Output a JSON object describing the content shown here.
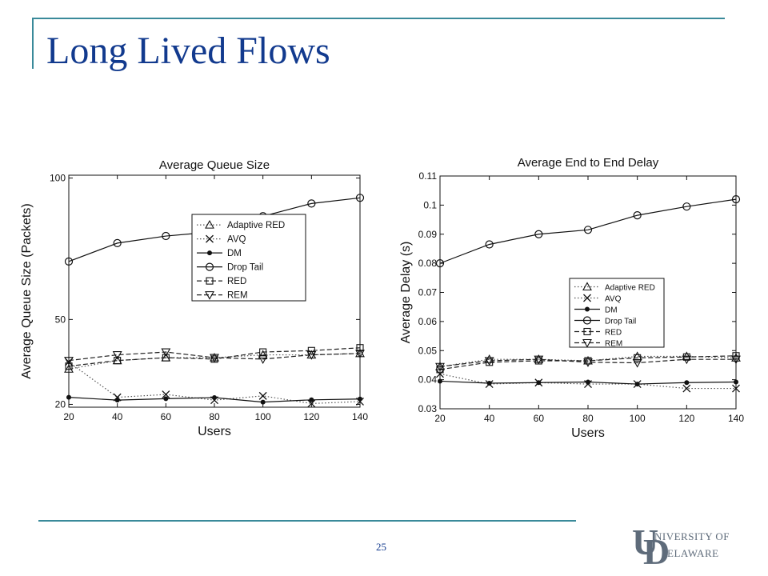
{
  "slide": {
    "title": "Long Lived Flows",
    "page_number": "25",
    "logo": {
      "line1": "NIVERSITY OF",
      "line2": "ELAWARE",
      "letter_u": "U",
      "letter_d": "D"
    },
    "colors": {
      "title": "#123a8e",
      "rule": "#3a8a9a",
      "logo": "#5e6b7a"
    }
  },
  "chart_data": [
    {
      "type": "line",
      "title": "Average Queue Size",
      "xlabel": "Users",
      "ylabel": "Average Queue Size (Packets)",
      "x": [
        20,
        40,
        60,
        80,
        100,
        120,
        140
      ],
      "xticks": [
        "20",
        "40",
        "60",
        "80",
        "100",
        "120",
        "140"
      ],
      "yticks": [
        {
          "value": 20,
          "label": "20"
        },
        {
          "value": 50,
          "label": "50"
        },
        {
          "value": 100,
          "label": "100"
        }
      ],
      "ylim": [
        19,
        101
      ],
      "legend_position": "center-right",
      "series": [
        {
          "name": "Adaptive RED",
          "marker": "triangle-up",
          "dash": "dotted",
          "values": [
            32.5,
            35.5,
            36.5,
            36.5,
            37.5,
            37.5,
            38
          ]
        },
        {
          "name": "AVQ",
          "marker": "x",
          "dash": "dotted",
          "values": [
            35,
            22.5,
            23.5,
            21.5,
            23,
            20.3,
            21
          ]
        },
        {
          "name": "DM",
          "marker": "dot",
          "dash": "solid",
          "values": [
            22.5,
            21.5,
            22,
            22.4,
            20.8,
            21.6,
            21.9
          ]
        },
        {
          "name": "Drop Tail",
          "marker": "circle",
          "dash": "solid",
          "values": [
            70.5,
            77,
            79.5,
            81,
            86.5,
            91,
            93
          ]
        },
        {
          "name": "RED",
          "marker": "square",
          "dash": "dashed",
          "values": [
            33.5,
            35.5,
            36.5,
            36,
            38.5,
            39,
            40
          ]
        },
        {
          "name": "REM",
          "marker": "triangle-down",
          "dash": "dashed",
          "values": [
            35.5,
            37.5,
            38.5,
            36.5,
            36,
            37.5,
            38
          ]
        }
      ]
    },
    {
      "type": "line",
      "title": "Average End to End Delay",
      "xlabel": "Users",
      "ylabel": "Average Delay (s)",
      "x": [
        20,
        40,
        60,
        80,
        100,
        120,
        140
      ],
      "xticks": [
        "20",
        "40",
        "60",
        "80",
        "100",
        "120",
        "140"
      ],
      "yticks": [
        {
          "value": 0.03,
          "label": "0.03"
        },
        {
          "value": 0.04,
          "label": "0.04"
        },
        {
          "value": 0.05,
          "label": "0.05"
        },
        {
          "value": 0.06,
          "label": "0.06"
        },
        {
          "value": 0.07,
          "label": "0.07"
        },
        {
          "value": 0.08,
          "label": "0.08"
        },
        {
          "value": 0.09,
          "label": "0.09"
        },
        {
          "value": 0.1,
          "label": "0.1"
        },
        {
          "value": 0.11,
          "label": "0.11"
        }
      ],
      "ylim": [
        0.03,
        0.11
      ],
      "legend_position": "center-right",
      "series": [
        {
          "name": "Adaptive RED",
          "marker": "triangle-up",
          "dash": "dotted",
          "values": [
            0.0445,
            0.047,
            0.047,
            0.0465,
            0.048,
            0.048,
            0.0475
          ]
        },
        {
          "name": "AVQ",
          "marker": "x",
          "dash": "dotted",
          "values": [
            0.042,
            0.0385,
            0.039,
            0.0385,
            0.0385,
            0.037,
            0.037
          ]
        },
        {
          "name": "DM",
          "marker": "dot",
          "dash": "solid",
          "values": [
            0.0395,
            0.0388,
            0.039,
            0.0392,
            0.0385,
            0.039,
            0.0392
          ]
        },
        {
          "name": "Drop Tail",
          "marker": "circle",
          "dash": "solid",
          "values": [
            0.08,
            0.0865,
            0.09,
            0.0915,
            0.0965,
            0.0995,
            0.102
          ]
        },
        {
          "name": "RED",
          "marker": "square",
          "dash": "dashed",
          "values": [
            0.0435,
            0.046,
            0.0465,
            0.0465,
            0.0475,
            0.0478,
            0.0482
          ]
        },
        {
          "name": "REM",
          "marker": "triangle-down",
          "dash": "dashed",
          "values": [
            0.0445,
            0.0465,
            0.047,
            0.046,
            0.0458,
            0.047,
            0.047
          ]
        }
      ]
    }
  ]
}
